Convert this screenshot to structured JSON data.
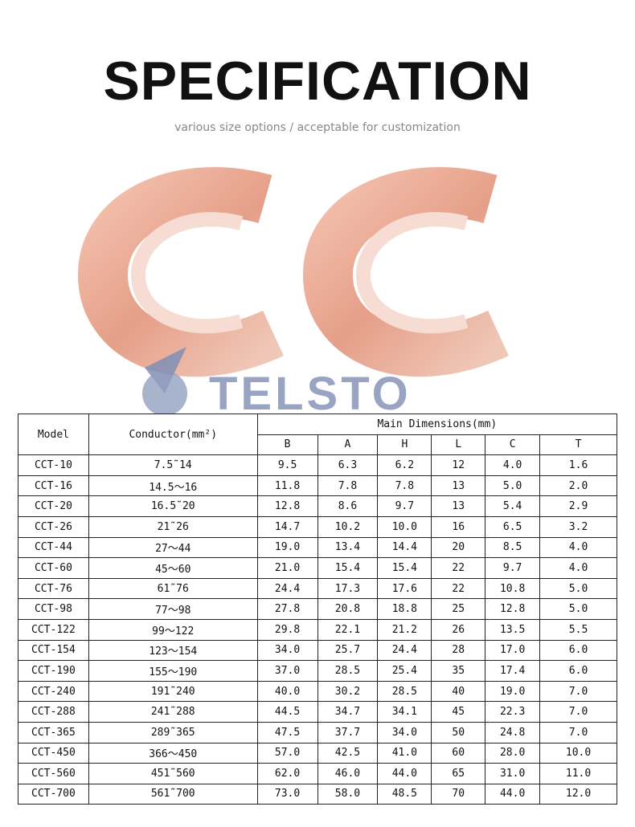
{
  "header": {
    "title": "SPECIFICATION",
    "subtitle": "various size options / acceptable for customization"
  },
  "logo": {
    "text": "TELSTO"
  },
  "table": {
    "model_header": "Model",
    "conductor_header": "Conductor(mm²)",
    "group_header": "Main Dimensions(mm)",
    "columns": [
      "B",
      "A",
      "H",
      "L",
      "C",
      "T"
    ],
    "rows": [
      [
        "CCT-10",
        "7.5˜14",
        "9.5",
        "6.3",
        "6.2",
        "12",
        "4.0",
        "1.6"
      ],
      [
        "CCT-16",
        "14.5～16",
        "11.8",
        "7.8",
        "7.8",
        "13",
        "5.0",
        "2.0"
      ],
      [
        "CCT-20",
        "16.5˜20",
        "12.8",
        "8.6",
        "9.7",
        "13",
        "5.4",
        "2.9"
      ],
      [
        "CCT-26",
        "21˜26",
        "14.7",
        "10.2",
        "10.0",
        "16",
        "6.5",
        "3.2"
      ],
      [
        "CCT-44",
        "27～44",
        "19.0",
        "13.4",
        "14.4",
        "20",
        "8.5",
        "4.0"
      ],
      [
        "CCT-60",
        "45～60",
        "21.0",
        "15.4",
        "15.4",
        "22",
        "9.7",
        "4.0"
      ],
      [
        "CCT-76",
        "61˜76",
        "24.4",
        "17.3",
        "17.6",
        "22",
        "10.8",
        "5.0"
      ],
      [
        "CCT-98",
        "77～98",
        "27.8",
        "20.8",
        "18.8",
        "25",
        "12.8",
        "5.0"
      ],
      [
        "CCT-122",
        "99～122",
        "29.8",
        "22.1",
        "21.2",
        "26",
        "13.5",
        "5.5"
      ],
      [
        "CCT-154",
        "123～154",
        "34.0",
        "25.7",
        "24.4",
        "28",
        "17.0",
        "6.0"
      ],
      [
        "CCT-190",
        "155～190",
        "37.0",
        "28.5",
        "25.4",
        "35",
        "17.4",
        "6.0"
      ],
      [
        "CCT-240",
        "191˜240",
        "40.0",
        "30.2",
        "28.5",
        "40",
        "19.0",
        "7.0"
      ],
      [
        "CCT-288",
        "241˜288",
        "44.5",
        "34.7",
        "34.1",
        "45",
        "22.3",
        "7.0"
      ],
      [
        "CCT-365",
        "289˜365",
        "47.5",
        "37.7",
        "34.0",
        "50",
        "24.8",
        "7.0"
      ],
      [
        "CCT-450",
        "366～450",
        "57.0",
        "42.5",
        "41.0",
        "60",
        "28.0",
        "10.0"
      ],
      [
        "CCT-560",
        "451˜560",
        "62.0",
        "46.0",
        "44.0",
        "65",
        "31.0",
        "11.0"
      ],
      [
        "CCT-700",
        "561˜700",
        "73.0",
        "58.0",
        "48.5",
        "70",
        "44.0",
        "12.0"
      ]
    ]
  }
}
